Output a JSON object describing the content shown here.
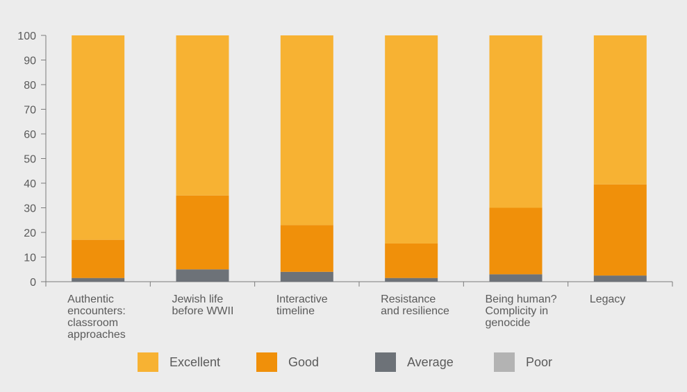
{
  "chart_data": {
    "type": "bar",
    "stacked": true,
    "title": "",
    "xlabel": "",
    "ylabel": "",
    "ylim": [
      0,
      100
    ],
    "yticks": [
      0,
      10,
      20,
      30,
      40,
      50,
      60,
      70,
      80,
      90,
      100
    ],
    "grid": false,
    "legend_position": "bottom",
    "categories": [
      [
        "Authentic",
        "encounters:",
        "classroom",
        "approaches"
      ],
      [
        "Jewish life",
        "before WWII"
      ],
      [
        "Interactive",
        "timeline"
      ],
      [
        "Resistance",
        "and resilience"
      ],
      [
        "Being human?",
        "Complicity in",
        "genocide"
      ],
      [
        "Legacy"
      ]
    ],
    "series": [
      {
        "name": "Poor",
        "color": "#b3b3b3",
        "values": [
          0,
          0,
          0,
          0,
          0,
          0
        ]
      },
      {
        "name": "Average",
        "color": "#6d7278",
        "values": [
          1.5,
          5,
          4,
          1.5,
          3,
          2.5
        ]
      },
      {
        "name": "Good",
        "color": "#f0900a",
        "values": [
          15.5,
          30,
          19,
          14,
          27,
          37
        ]
      },
      {
        "name": "Excellent",
        "color": "#f7b233",
        "values": [
          83,
          65,
          77,
          84.5,
          70,
          60.5
        ]
      }
    ],
    "legend_order": [
      "Excellent",
      "Good",
      "Average",
      "Poor"
    ]
  }
}
